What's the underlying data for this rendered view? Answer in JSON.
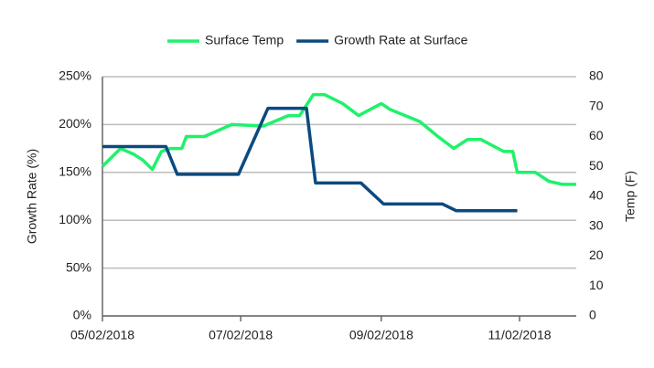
{
  "chart_data": {
    "type": "line",
    "y_label": "Growth Rate (%)",
    "y2_label": "Temp (F)",
    "xlim": [
      "05/02/2018",
      "11/27/2018"
    ],
    "xticks": [
      "05/02/2018",
      "07/02/2018",
      "09/02/2018",
      "11/02/2018"
    ],
    "ylim": [
      0,
      250
    ],
    "yticks": [
      {
        "value": 0,
        "label": "0%"
      },
      {
        "value": 50,
        "label": "50%"
      },
      {
        "value": 100,
        "label": "100%"
      },
      {
        "value": 150,
        "label": "150%"
      },
      {
        "value": 200,
        "label": "200%"
      },
      {
        "value": 250,
        "label": "250%"
      }
    ],
    "y2lim": [
      0,
      80
    ],
    "y2ticks": [
      0,
      10,
      20,
      30,
      40,
      50,
      60,
      70,
      80
    ],
    "grid": true,
    "legend": "top",
    "series": [
      {
        "name": "Surface Temp",
        "color": "#1ef26a",
        "axis": "y2",
        "x": [
          "05/02/2018",
          "05/10/2018",
          "05/16/2018",
          "05/20/2018",
          "05/24/2018",
          "05/28/2018",
          "06/01/2018",
          "06/06/2018",
          "06/08/2018",
          "06/16/2018",
          "06/28/2018",
          "07/12/2018",
          "07/23/2018",
          "07/28/2018",
          "08/03/2018",
          "08/08/2018",
          "08/16/2018",
          "08/23/2018",
          "09/02/2018",
          "09/06/2018",
          "09/19/2018",
          "09/27/2018",
          "10/04/2018",
          "10/10/2018",
          "10/16/2018",
          "10/26/2018",
          "10/30/2018",
          "11/01/2018",
          "11/09/2018",
          "11/15/2018",
          "11/21/2018",
          "11/27/2018"
        ],
        "values": [
          50,
          56,
          54,
          52,
          49,
          55,
          56,
          56,
          60,
          60,
          64,
          63.5,
          67,
          67,
          74,
          74,
          71,
          67,
          71,
          69,
          65,
          60,
          56,
          59,
          59,
          55,
          55,
          48,
          48,
          45,
          44,
          44
        ]
      },
      {
        "name": "Growth Rate at Surface",
        "color": "#0a4a80",
        "axis": "y",
        "x": [
          "05/02/2018",
          "05/30/2018",
          "06/04/2018",
          "07/01/2018",
          "07/14/2018",
          "07/31/2018",
          "08/04/2018",
          "08/24/2018",
          "09/03/2018",
          "09/29/2018",
          "10/05/2018",
          "11/01/2018"
        ],
        "values": [
          177,
          177,
          148,
          148,
          217,
          217,
          139,
          139,
          117,
          117,
          110,
          110
        ]
      }
    ]
  }
}
